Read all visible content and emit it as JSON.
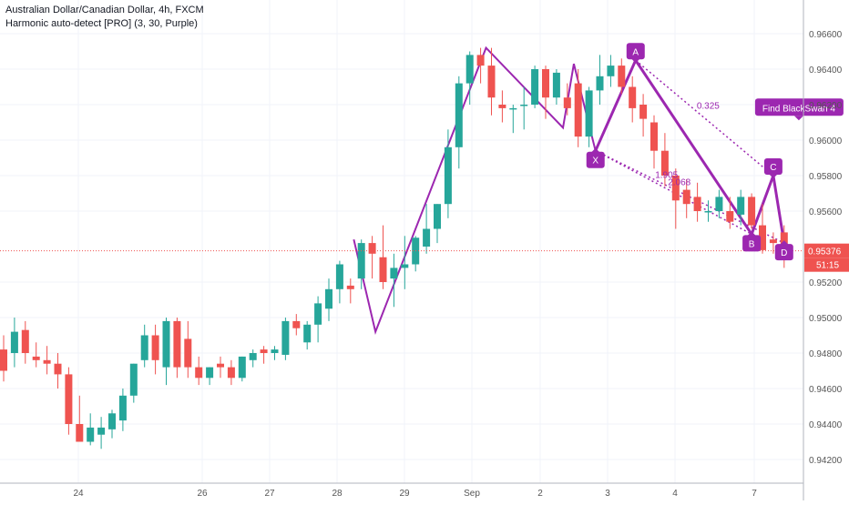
{
  "legend": {
    "symbol": "Australian Dollar/Canadian Dollar, 4h, FXCM",
    "indicator": "Harmonic auto-detect [PRO] (3, 30, Purple)"
  },
  "colors": {
    "up": "#26a69a",
    "down": "#ef5350",
    "pattern": "#9c27b0",
    "price_line": "#ef5350",
    "grid": "#f0f3fa",
    "axis_text": "#555555"
  },
  "chart_data": {
    "type": "candlestick",
    "x_labels": [
      "24",
      "26",
      "27",
      "28",
      "29",
      "Sep",
      "2",
      "3",
      "4",
      "7"
    ],
    "y_ticks": [
      "0.96600",
      "0.96400",
      "0.96200",
      "0.96000",
      "0.95800",
      "0.95600",
      "0.95200",
      "0.95000",
      "0.94800",
      "0.94600",
      "0.94400",
      "0.94200"
    ],
    "last_price": "0.95376",
    "countdown": "51:15",
    "ylim": [
      0.941,
      0.9675
    ],
    "candles": [
      [
        0.9482,
        0.949,
        0.9464,
        0.947
      ],
      [
        0.948,
        0.95,
        0.9472,
        0.9492
      ],
      [
        0.9493,
        0.9498,
        0.9474,
        0.948
      ],
      [
        0.9478,
        0.9486,
        0.9472,
        0.9476
      ],
      [
        0.9476,
        0.9484,
        0.9468,
        0.9474
      ],
      [
        0.9474,
        0.948,
        0.946,
        0.9468
      ],
      [
        0.9468,
        0.9472,
        0.9434,
        0.944
      ],
      [
        0.944,
        0.9456,
        0.943,
        0.943
      ],
      [
        0.943,
        0.9446,
        0.9428,
        0.9438
      ],
      [
        0.9434,
        0.9444,
        0.9426,
        0.9438
      ],
      [
        0.9437,
        0.9448,
        0.9432,
        0.9446
      ],
      [
        0.9442,
        0.946,
        0.9436,
        0.9456
      ],
      [
        0.9456,
        0.9474,
        0.9452,
        0.9474
      ],
      [
        0.9476,
        0.9496,
        0.9472,
        0.949
      ],
      [
        0.949,
        0.9496,
        0.9468,
        0.9476
      ],
      [
        0.9472,
        0.95,
        0.9462,
        0.9498
      ],
      [
        0.9498,
        0.95,
        0.9466,
        0.9472
      ],
      [
        0.9488,
        0.9498,
        0.9466,
        0.9472
      ],
      [
        0.9472,
        0.9478,
        0.9462,
        0.9466
      ],
      [
        0.9466,
        0.9472,
        0.9462,
        0.9472
      ],
      [
        0.9474,
        0.9478,
        0.9466,
        0.9472
      ],
      [
        0.9472,
        0.9476,
        0.9462,
        0.9466
      ],
      [
        0.9466,
        0.9478,
        0.9464,
        0.9478
      ],
      [
        0.9476,
        0.9482,
        0.9472,
        0.948
      ],
      [
        0.9482,
        0.9484,
        0.9474,
        0.948
      ],
      [
        0.948,
        0.9484,
        0.9476,
        0.9482
      ],
      [
        0.9479,
        0.95,
        0.9476,
        0.9498
      ],
      [
        0.9498,
        0.9502,
        0.949,
        0.9494
      ],
      [
        0.9486,
        0.9498,
        0.9482,
        0.9496
      ],
      [
        0.9496,
        0.9512,
        0.9486,
        0.9508
      ],
      [
        0.9505,
        0.9522,
        0.9498,
        0.9516
      ],
      [
        0.9516,
        0.9532,
        0.9508,
        0.953
      ],
      [
        0.9518,
        0.9522,
        0.9508,
        0.9516
      ],
      [
        0.9522,
        0.9544,
        0.9516,
        0.9542
      ],
      [
        0.9542,
        0.9546,
        0.9522,
        0.9536
      ],
      [
        0.9534,
        0.9552,
        0.9516,
        0.952
      ],
      [
        0.9522,
        0.9536,
        0.9506,
        0.9528
      ],
      [
        0.9528,
        0.9546,
        0.9516,
        0.953
      ],
      [
        0.953,
        0.9546,
        0.9526,
        0.9545
      ],
      [
        0.954,
        0.9564,
        0.9536,
        0.955
      ],
      [
        0.955,
        0.9564,
        0.9542,
        0.9564
      ],
      [
        0.9564,
        0.9606,
        0.9556,
        0.9596
      ],
      [
        0.9596,
        0.9636,
        0.9584,
        0.9632
      ],
      [
        0.9632,
        0.965,
        0.962,
        0.9648
      ],
      [
        0.9648,
        0.9652,
        0.9632,
        0.9642
      ],
      [
        0.9642,
        0.9652,
        0.9614,
        0.9624
      ],
      [
        0.962,
        0.9628,
        0.961,
        0.9618
      ],
      [
        0.9618,
        0.962,
        0.9604,
        0.9618
      ],
      [
        0.962,
        0.963,
        0.9606,
        0.962
      ],
      [
        0.962,
        0.9642,
        0.9618,
        0.964
      ],
      [
        0.964,
        0.9642,
        0.9612,
        0.9624
      ],
      [
        0.9624,
        0.964,
        0.962,
        0.9638
      ],
      [
        0.9624,
        0.9632,
        0.9614,
        0.9618
      ],
      [
        0.9632,
        0.964,
        0.9596,
        0.9602
      ],
      [
        0.9602,
        0.963,
        0.9596,
        0.9628
      ],
      [
        0.9628,
        0.9648,
        0.962,
        0.9636
      ],
      [
        0.9636,
        0.9648,
        0.963,
        0.9642
      ],
      [
        0.9642,
        0.9646,
        0.9626,
        0.963
      ],
      [
        0.963,
        0.9636,
        0.961,
        0.9618
      ],
      [
        0.962,
        0.9626,
        0.9602,
        0.9612
      ],
      [
        0.961,
        0.9614,
        0.9584,
        0.9594
      ],
      [
        0.9594,
        0.9604,
        0.9574,
        0.958
      ],
      [
        0.958,
        0.9584,
        0.955,
        0.9566
      ],
      [
        0.9572,
        0.9578,
        0.9556,
        0.9564
      ],
      [
        0.9568,
        0.9576,
        0.9554,
        0.956
      ],
      [
        0.956,
        0.9566,
        0.9554,
        0.956
      ],
      [
        0.956,
        0.9572,
        0.9556,
        0.9568
      ],
      [
        0.956,
        0.9568,
        0.955,
        0.9554
      ],
      [
        0.9558,
        0.9572,
        0.9552,
        0.9568
      ],
      [
        0.9568,
        0.957,
        0.955,
        0.9552
      ],
      [
        0.9552,
        0.9564,
        0.9536,
        0.9538
      ],
      [
        0.9544,
        0.9548,
        0.9536,
        0.9542
      ],
      [
        0.9548,
        0.9552,
        0.9528,
        0.9538
      ]
    ],
    "pattern": {
      "name": "Find BlackSwan 4",
      "points": [
        {
          "label": "X",
          "t": 54.6,
          "price": 0.9594
        },
        {
          "label": "A",
          "t": 58.3,
          "price": 0.9645
        },
        {
          "label": "B",
          "t": 69.0,
          "price": 0.9547
        },
        {
          "label": "C",
          "t": 71.0,
          "price": 0.958
        },
        {
          "label": "D",
          "t": 72.0,
          "price": 0.9542
        }
      ],
      "ratios": [
        "0.325",
        "1.905",
        "2.068"
      ],
      "prior_swings": [
        {
          "t": 32.3,
          "price": 0.9544
        },
        {
          "t": 34.3,
          "price": 0.9492
        },
        {
          "t": 44.5,
          "price": 0.9652
        },
        {
          "t": 51.6,
          "price": 0.9607
        },
        {
          "t": 52.6,
          "price": 0.9643
        },
        {
          "t": 54.6,
          "price": 0.9594
        }
      ]
    }
  }
}
